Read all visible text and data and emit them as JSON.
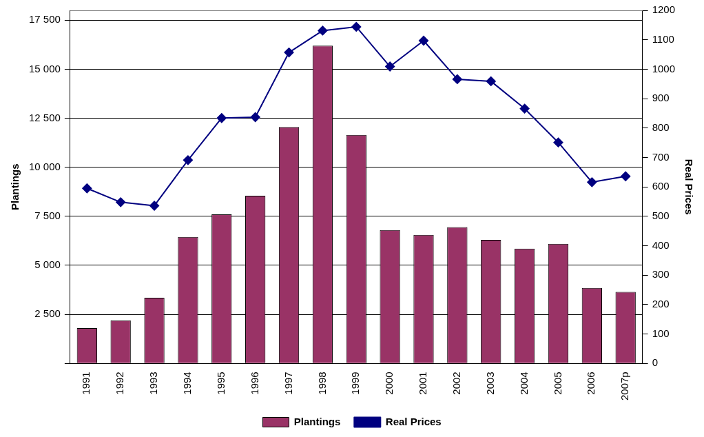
{
  "chart_data": {
    "type": "bar",
    "ylabel": "Plantings",
    "y2label": "Real Prices",
    "categories": [
      "1991",
      "1992",
      "1993",
      "1994",
      "1995",
      "1996",
      "1997",
      "1998",
      "1999",
      "2000",
      "2001",
      "2002",
      "2003",
      "2004",
      "2005",
      "2006",
      "2007p"
    ],
    "series": [
      {
        "name": "Plantings",
        "color": "#993366",
        "values": [
          1800,
          2200,
          3350,
          6450,
          7600,
          8550,
          12050,
          16200,
          11650,
          6800,
          6550,
          6950,
          6300,
          5850,
          6100,
          3850,
          3650
        ]
      },
      {
        "name": "Real Prices",
        "type": "line",
        "axis": "y2",
        "color": "#000080",
        "values": [
          595,
          548,
          536,
          691,
          834,
          837,
          1057,
          1131,
          1144,
          1009,
          1097,
          966,
          959,
          866,
          751,
          616,
          636
        ]
      }
    ],
    "ylim": [
      0,
      18000
    ],
    "yticks": [
      {
        "value": 0,
        "label": null
      },
      {
        "value": 2500,
        "label": "2 500"
      },
      {
        "value": 5000,
        "label": "5 000"
      },
      {
        "value": 7500,
        "label": "7 500"
      },
      {
        "value": 10000,
        "label": "10 000"
      },
      {
        "value": 12500,
        "label": "12 500"
      },
      {
        "value": 15000,
        "label": "15 000"
      },
      {
        "value": 17500,
        "label": "17 500"
      }
    ],
    "y2lim": [
      0,
      1200
    ],
    "y2ticks": [
      0,
      100,
      200,
      300,
      400,
      500,
      600,
      700,
      800,
      900,
      1000,
      1100,
      1200
    ],
    "grid": "y",
    "legend": "bottom",
    "marker": "diamond"
  }
}
